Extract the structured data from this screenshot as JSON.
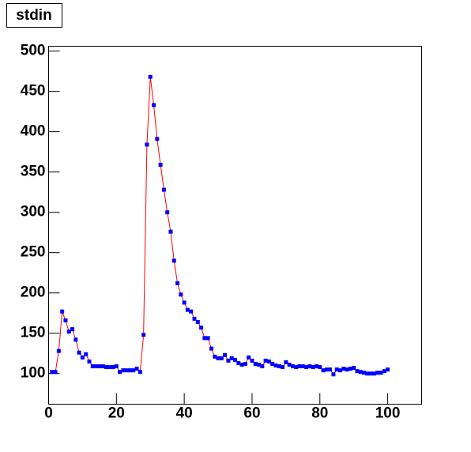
{
  "chart_data": {
    "type": "line",
    "title": "stdin",
    "x": [
      1,
      2,
      3,
      4,
      5,
      6,
      7,
      8,
      9,
      10,
      11,
      12,
      13,
      14,
      15,
      16,
      17,
      18,
      19,
      20,
      21,
      22,
      23,
      24,
      25,
      26,
      27,
      28,
      29,
      30,
      31,
      32,
      33,
      34,
      35,
      36,
      37,
      38,
      39,
      40,
      41,
      42,
      43,
      44,
      45,
      46,
      47,
      48,
      49,
      50,
      51,
      52,
      53,
      54,
      55,
      56,
      57,
      58,
      59,
      60,
      61,
      62,
      63,
      64,
      65,
      66,
      67,
      68,
      69,
      70,
      71,
      72,
      73,
      74,
      75,
      76,
      77,
      78,
      79,
      80,
      81,
      82,
      83,
      84,
      85,
      86,
      87,
      88,
      89,
      90,
      91,
      92,
      93,
      94,
      95,
      96,
      97,
      98,
      99,
      100
    ],
    "series": [
      {
        "color": "#0000ff",
        "line_color": "#ff0000",
        "values": [
          102,
          102,
          128,
          177,
          166,
          152,
          155,
          142,
          126,
          120,
          124,
          115,
          109,
          109,
          109,
          109,
          108,
          108,
          108,
          109,
          102,
          104,
          104,
          104,
          104,
          106,
          102,
          148,
          384,
          468,
          433,
          391,
          359,
          328,
          300,
          276,
          240,
          212,
          198,
          188,
          179,
          177,
          168,
          164,
          157,
          144,
          144,
          131,
          121,
          119,
          119,
          123,
          116,
          119,
          117,
          113,
          111,
          112,
          120,
          116,
          112,
          111,
          109,
          116,
          115,
          112,
          110,
          109,
          108,
          114,
          111,
          109,
          108,
          109,
          109,
          108,
          109,
          108,
          109,
          108,
          104,
          105,
          105,
          99,
          105,
          104,
          106,
          105,
          106,
          107,
          103,
          102,
          101,
          100,
          100,
          100,
          101,
          101,
          103,
          105
        ]
      }
    ],
    "xlim": [
      0,
      110
    ],
    "ylim": [
      62,
      506
    ],
    "xticks": [
      0,
      20,
      40,
      60,
      80,
      100
    ],
    "yticks": [
      100,
      150,
      200,
      250,
      300,
      350,
      400,
      450,
      500
    ]
  }
}
